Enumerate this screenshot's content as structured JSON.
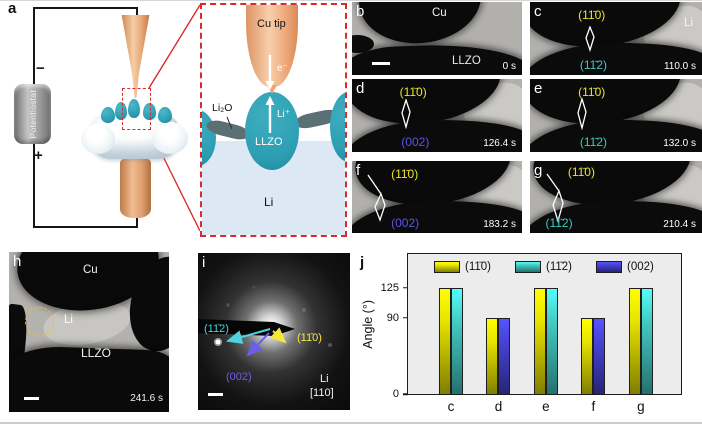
{
  "colors": {
    "label_yellow": "#ede426",
    "label_teal": "#3fc9c3",
    "label_blue": "#5b55e6",
    "diff_cyan": "#4fd2e0",
    "diff_yellow": "#f4e937",
    "diff_blue": "#6b5fe8",
    "dashed_red": "#d92b2b",
    "teal_fill": "#2d9fb3",
    "li_fill": "#dce8f4",
    "li2o_fill": "#5b7075",
    "chart_bg": "#ececec",
    "circle_yellow": "#e6bf3a"
  },
  "panels": {
    "a": {
      "label": "a",
      "potentiostat": "Potentiostat",
      "minus": "−",
      "plus": "+",
      "inset": {
        "cu_tip": "Cu tip",
        "electron": "e⁻",
        "li_ion": "Li⁺",
        "li2o": "Li₂O",
        "llzo": "LLZO",
        "li": "Li"
      }
    },
    "h": {
      "label": "h",
      "cu": "Cu",
      "li": "Li",
      "llzo": "LLZO",
      "time": "241.6 s"
    },
    "i": {
      "label": "i",
      "d112": "(11̄2)",
      "d110": "(11̄0)",
      "d002": "(002)",
      "material": "Li",
      "zone": "[110]"
    },
    "j": {
      "label": "j"
    }
  },
  "tem": {
    "b": {
      "label": "b",
      "cu": "Cu",
      "llzo": "LLZO",
      "time": "0 s"
    },
    "c": {
      "label": "c",
      "top": "(11̄0)",
      "bottom": "(11̄2)",
      "li": "Li",
      "time": "110.0 s"
    },
    "d": {
      "label": "d",
      "top": "(11̄0)",
      "bottom": "(002)",
      "time": "126.4 s"
    },
    "e": {
      "label": "e",
      "top": "(11̄0)",
      "bottom": "(11̄2)",
      "time": "132.0 s"
    },
    "f": {
      "label": "f",
      "top": "(11̄0)",
      "bottom": "(002)",
      "time": "183.2 s"
    },
    "g": {
      "label": "g",
      "top": "(11̄0)",
      "bottom": "(11̄2)",
      "time": "210.4 s"
    }
  },
  "chart_data": {
    "type": "bar",
    "title": "",
    "categories": [
      "c",
      "d",
      "e",
      "f",
      "g"
    ],
    "series": [
      {
        "name": "(11̄0)",
        "color": "#e8e400",
        "values": [
          125,
          90,
          125,
          90,
          125
        ]
      },
      {
        "name": "(11̄2)",
        "color": "#44ccc6",
        "values": [
          125,
          null,
          125,
          null,
          125
        ]
      },
      {
        "name": "(002)",
        "color": "#4643d6",
        "values": [
          null,
          90,
          null,
          90,
          null
        ]
      }
    ],
    "ylabel": "Angle (°)",
    "yticks": [
      0,
      90,
      125
    ],
    "ylim": [
      0,
      165
    ],
    "legend_position": "top-inside",
    "grid": false
  }
}
